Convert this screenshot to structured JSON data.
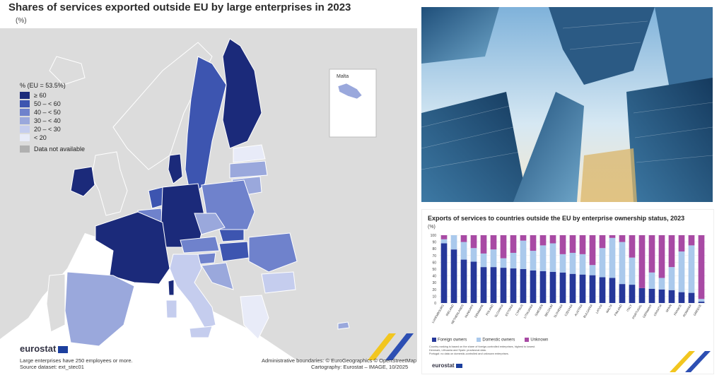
{
  "header": {
    "title": "Shares of services exported outside EU by large enterprises in 2023",
    "unit": "(%)"
  },
  "map": {
    "legend_title": "% (EU = 53.5%)",
    "legend": [
      {
        "label": "≥ 60",
        "color": "#1b2a7a"
      },
      {
        "label": "50 – < 60",
        "color": "#3d55b0"
      },
      {
        "label": "40 – < 50",
        "color": "#6f82cc"
      },
      {
        "label": "30 – < 40",
        "color": "#9aa8dc"
      },
      {
        "label": "20 – < 30",
        "color": "#c5cdee"
      },
      {
        "label": "< 20",
        "color": "#e8ebf8"
      }
    ],
    "na_label": "Data not available",
    "na_color": "#b0b0b0",
    "inset_label": "Malta"
  },
  "footer": {
    "logo": "eurostat",
    "note": "Large enterprises have 250 employees or more.",
    "source": "Source dataset: ext_stec01",
    "credits1": "Administrative boundaries: © EuroGeographics © OpenStreetMap",
    "credits2": "Cartography: Eurostat – IMAGE, 10/2025"
  },
  "chart_data": {
    "type": "bar",
    "stacked": true,
    "title": "Exports of services to countries outside the EU by enterprise ownership status, 2023",
    "ylabel": "(%)",
    "ylim": [
      0,
      100
    ],
    "yticks": [
      0,
      10,
      20,
      30,
      40,
      50,
      60,
      70,
      80,
      90,
      100
    ],
    "categories": [
      "LUXEMBOURG",
      "IRELAND",
      "NETHERLANDS",
      "HUNGARY",
      "DENMARK",
      "POLAND",
      "SLOVAKIA",
      "ESTONIA",
      "CYPRUS",
      "LITHUANIA",
      "SWEDEN",
      "BELGIUM",
      "SLOVENIA",
      "CZECHIA",
      "AUSTRIA",
      "BULGARIA",
      "LATVIA",
      "MALTA",
      "FINLAND",
      "ITALY",
      "PORTUGAL",
      "GERMANY",
      "CROATIA",
      "SPAIN",
      "FRANCE",
      "ROMANIA",
      "GREECE"
    ],
    "series": [
      {
        "name": "Foreign owners",
        "color": "#26389a",
        "values": [
          88,
          79,
          64,
          61,
          53,
          53,
          52,
          51,
          50,
          48,
          47,
          46,
          45,
          43,
          42,
          41,
          38,
          37,
          28,
          27,
          22,
          21,
          20,
          19,
          16,
          15,
          2
        ]
      },
      {
        "name": "Domestic owners",
        "color": "#aac9ec",
        "values": [
          6,
          21,
          26,
          20,
          20,
          26,
          14,
          23,
          42,
          29,
          38,
          42,
          27,
          31,
          30,
          15,
          43,
          59,
          62,
          40,
          0,
          24,
          17,
          34,
          60,
          70,
          4
        ]
      },
      {
        "name": "Unknown",
        "color": "#a84aa4",
        "values": [
          6,
          0,
          10,
          19,
          27,
          21,
          34,
          26,
          8,
          23,
          15,
          12,
          28,
          26,
          28,
          44,
          19,
          4,
          10,
          33,
          78,
          55,
          63,
          47,
          24,
          15,
          94
        ]
      }
    ],
    "notes": [
      "Country ranking is based on the share of foreign-controlled enterprises, highest to lowest.",
      "Denmark, Lithuania and Spain: provisional data.",
      "Portugal: no data on domestic-controlled and unknown enterprises."
    ],
    "logo": "eurostat"
  }
}
